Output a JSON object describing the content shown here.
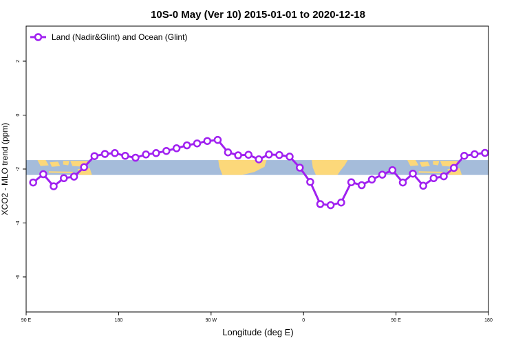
{
  "chart_data": {
    "type": "line",
    "title": "10S-0 May (Ver 10)   2015-01-01 to 2020-12-18",
    "xlabel": "Longitude (deg E)",
    "ylabel": "XCO2 - MLO trend (ppm)",
    "xlim": [
      90,
      540
    ],
    "ylim": [
      -7.3,
      3.3
    ],
    "x_ticks": [
      {
        "value": 90,
        "label": "90 E"
      },
      {
        "value": 180,
        "label": "180"
      },
      {
        "value": 270,
        "label": "90 W"
      },
      {
        "value": 360,
        "label": "0"
      },
      {
        "value": 450,
        "label": "90 E"
      },
      {
        "value": 540,
        "label": "180"
      }
    ],
    "y_ticks": [
      {
        "value": 2,
        "label": "2"
      },
      {
        "value": 0,
        "label": "0"
      },
      {
        "value": -2,
        "label": "-2"
      },
      {
        "value": -4,
        "label": "-4"
      },
      {
        "value": -6,
        "label": "-6"
      }
    ],
    "legend": {
      "position": "top-left"
    },
    "map_band": {
      "y_top": -1.67,
      "y_bottom": -2.22,
      "ocean_color": "#a5bcda",
      "land_color": "#fcd87a"
    },
    "series": [
      {
        "name": "Land (Nadir&Glint) and Ocean (Glint)",
        "color": "#a020f0",
        "x": [
          96.8,
          106.7,
          116.8,
          126.7,
          136.6,
          146.4,
          156.5,
          166.7,
          176.3,
          186.4,
          196.5,
          206.6,
          216.5,
          226.5,
          236.4,
          246.5,
          256.4,
          266.3,
          276.4,
          286.5,
          296.3,
          306.4,
          316.5,
          326.3,
          336.4,
          346.5,
          356.4,
          366.5,
          376.3,
          386.4,
          396.6,
          406.5,
          416.6,
          426.5,
          436.6,
          446.5,
          456.6,
          466.4,
          476.5,
          486.6,
          496.5,
          506.3,
          516.4,
          526.5,
          536.6
        ],
        "y": [
          -2.5,
          -2.19,
          -2.64,
          -2.34,
          -2.28,
          -1.93,
          -1.52,
          -1.44,
          -1.41,
          -1.51,
          -1.58,
          -1.46,
          -1.41,
          -1.33,
          -1.23,
          -1.12,
          -1.05,
          -0.96,
          -0.92,
          -1.38,
          -1.49,
          -1.47,
          -1.64,
          -1.46,
          -1.48,
          -1.54,
          -1.95,
          -2.48,
          -3.3,
          -3.34,
          -3.24,
          -2.49,
          -2.6,
          -2.39,
          -2.21,
          -2.04,
          -2.5,
          -2.17,
          -2.62,
          -2.34,
          -2.27,
          -1.96,
          -1.51,
          -1.45,
          -1.4
        ]
      }
    ]
  }
}
